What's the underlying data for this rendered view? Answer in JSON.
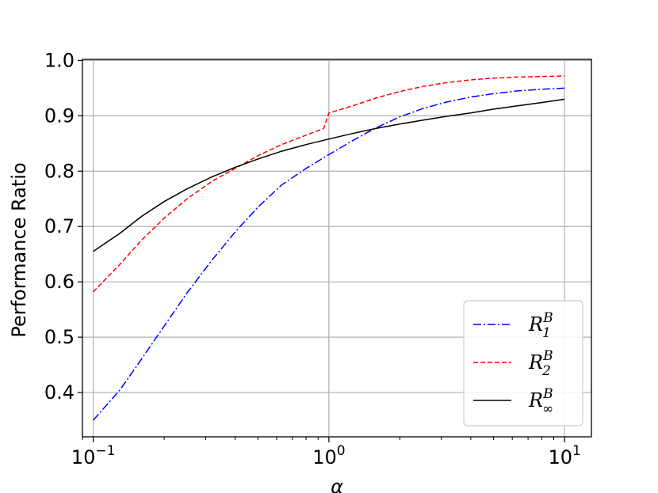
{
  "chart_data": {
    "type": "line",
    "xlabel": "α",
    "ylabel": "Performance Ratio",
    "xscale": "log",
    "xlim": [
      0.09,
      13.0
    ],
    "ylim": [
      0.32,
      1.002
    ],
    "grid": true,
    "legend_position": "lower-right",
    "x_ticks": [
      {
        "value": 0.1,
        "base": "10",
        "exp": "−1"
      },
      {
        "value": 1,
        "base": "10",
        "exp": "0"
      },
      {
        "value": 10,
        "base": "10",
        "exp": "1"
      }
    ],
    "y_ticks": [
      {
        "value": 0.4,
        "label": "0.4"
      },
      {
        "value": 0.5,
        "label": "0.5"
      },
      {
        "value": 0.6,
        "label": "0.6"
      },
      {
        "value": 0.7,
        "label": "0.7"
      },
      {
        "value": 0.8,
        "label": "0.8"
      },
      {
        "value": 0.9,
        "label": "0.9"
      },
      {
        "value": 1.0,
        "label": "1.0"
      }
    ],
    "series": [
      {
        "name": "R_1^B",
        "legend_base": "R",
        "legend_sup": "B",
        "legend_sub": "1",
        "color": "#0000ff",
        "dash": "10 3 2 3",
        "x": [
          0.1,
          0.13,
          0.16,
          0.2,
          0.25,
          0.32,
          0.4,
          0.5,
          0.63,
          0.8,
          1.0,
          1.26,
          1.58,
          2.0,
          2.5,
          3.16,
          4.0,
          5.0,
          6.3,
          8.0,
          10.0
        ],
        "y": [
          0.35,
          0.405,
          0.46,
          0.52,
          0.58,
          0.64,
          0.69,
          0.735,
          0.775,
          0.805,
          0.83,
          0.855,
          0.878,
          0.898,
          0.913,
          0.925,
          0.934,
          0.94,
          0.945,
          0.948,
          0.95
        ]
      },
      {
        "name": "R_2^B",
        "legend_base": "R",
        "legend_sup": "B",
        "legend_sub": "2",
        "color": "#ff0000",
        "dash": "6 3",
        "x": [
          0.1,
          0.13,
          0.16,
          0.2,
          0.25,
          0.32,
          0.4,
          0.5,
          0.63,
          0.8,
          0.95,
          1.0,
          1.26,
          1.58,
          2.0,
          2.5,
          3.16,
          4.0,
          5.0,
          6.3,
          8.0,
          10.0
        ],
        "y": [
          0.582,
          0.632,
          0.675,
          0.715,
          0.75,
          0.782,
          0.805,
          0.828,
          0.848,
          0.865,
          0.877,
          0.905,
          0.918,
          0.932,
          0.944,
          0.953,
          0.96,
          0.965,
          0.968,
          0.97,
          0.971,
          0.972
        ]
      },
      {
        "name": "R_∞^B",
        "legend_base": "R",
        "legend_sup": "B",
        "legend_sub": "∞",
        "color": "#000000",
        "dash": "",
        "x": [
          0.1,
          0.13,
          0.16,
          0.2,
          0.25,
          0.32,
          0.4,
          0.5,
          0.63,
          0.8,
          1.0,
          1.26,
          1.58,
          2.0,
          2.5,
          3.16,
          4.0,
          5.0,
          6.3,
          8.0,
          10.0
        ],
        "y": [
          0.655,
          0.688,
          0.718,
          0.745,
          0.768,
          0.79,
          0.807,
          0.822,
          0.836,
          0.848,
          0.858,
          0.868,
          0.877,
          0.885,
          0.892,
          0.899,
          0.905,
          0.912,
          0.918,
          0.924,
          0.93
        ]
      }
    ]
  }
}
